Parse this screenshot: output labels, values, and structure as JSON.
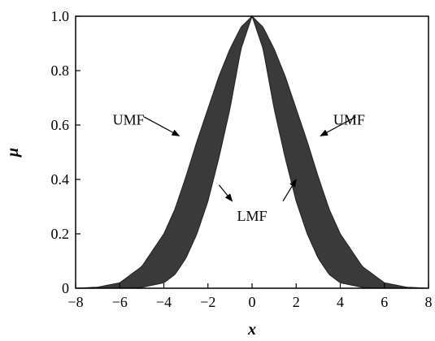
{
  "chart_data": {
    "type": "area",
    "title": "",
    "xlabel": "x",
    "ylabel": "μ",
    "xlim": [
      -8,
      8
    ],
    "ylim": [
      0,
      1.0
    ],
    "x_ticks": [
      -8,
      -6,
      -4,
      -2,
      0,
      2,
      4,
      6,
      8
    ],
    "x_tick_labels": [
      "−8",
      "−6",
      "−4",
      "−2",
      "0",
      "2",
      "4",
      "6",
      "8"
    ],
    "y_ticks": [
      0,
      0.2,
      0.4,
      0.6,
      0.8,
      1.0
    ],
    "y_tick_labels": [
      "0",
      "0.2",
      "0.4",
      "0.6",
      "0.8",
      "1.0"
    ],
    "grid": false,
    "legend": "none",
    "fill_color": "#3a3a3a",
    "series": [
      {
        "name": "UMF",
        "x": [
          -8,
          -7,
          -6,
          -5,
          -4,
          -3.5,
          -3,
          -2.5,
          -2,
          -1.5,
          -1,
          -0.5,
          0,
          0.5,
          1,
          1.5,
          2,
          2.5,
          3,
          3.5,
          4,
          5,
          6,
          7,
          8
        ],
        "values": [
          0.0,
          0.004,
          0.02,
          0.08,
          0.2,
          0.29,
          0.41,
          0.54,
          0.66,
          0.78,
          0.88,
          0.96,
          1.0,
          0.96,
          0.88,
          0.78,
          0.66,
          0.54,
          0.41,
          0.29,
          0.2,
          0.08,
          0.02,
          0.004,
          0.0
        ]
      },
      {
        "name": "LMF",
        "x": [
          -8,
          -6,
          -5,
          -4,
          -3.5,
          -3,
          -2.5,
          -2,
          -1.5,
          -1,
          -0.5,
          0,
          0.5,
          1,
          1.5,
          2,
          2.5,
          3,
          3.5,
          4,
          5,
          6,
          8
        ],
        "values": [
          0.0,
          0.0,
          0.003,
          0.02,
          0.05,
          0.11,
          0.2,
          0.32,
          0.48,
          0.66,
          0.88,
          1.0,
          0.88,
          0.66,
          0.48,
          0.32,
          0.2,
          0.11,
          0.05,
          0.02,
          0.003,
          0.0,
          0.0
        ]
      }
    ],
    "annotations": [
      {
        "text": "UMF",
        "text_at": [
          -5.6,
          0.62
        ],
        "arrow_from": [
          -4.9,
          0.63
        ],
        "arrow_to": [
          -3.3,
          0.56
        ]
      },
      {
        "text": "UMF",
        "text_at": [
          4.4,
          0.62
        ],
        "arrow_from": [
          4.7,
          0.63
        ],
        "arrow_to": [
          3.1,
          0.56
        ]
      },
      {
        "text": "LMF",
        "text_at": [
          0,
          0.265
        ],
        "arrow_from": [
          -1.5,
          0.38
        ],
        "arrow_to": [
          -0.9,
          0.32
        ]
      },
      {
        "text": "LMF",
        "text_at": [
          0,
          0.265
        ],
        "arrow_from": [
          1.4,
          0.32
        ],
        "arrow_to": [
          2.0,
          0.4
        ]
      }
    ]
  }
}
